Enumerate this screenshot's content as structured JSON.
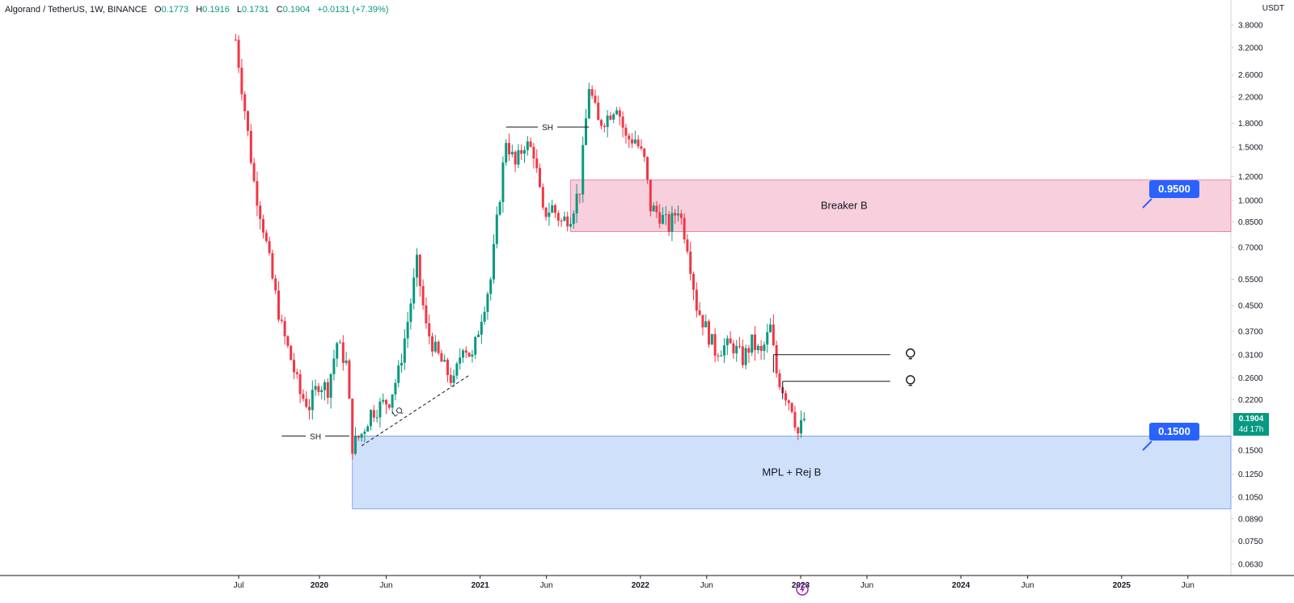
{
  "header": {
    "symbol": "Algorand / TetherUS, 1W, BINANCE",
    "o_label": "O",
    "o_value": "0.1773",
    "h_label": "H",
    "h_value": "0.1916",
    "l_label": "L",
    "l_value": "0.1731",
    "c_label": "C",
    "c_value": "0.1904",
    "change": "+0.0131 (+7.39%)"
  },
  "axis": {
    "currency": "USDT",
    "last_price": "0.1904",
    "countdown": "4d 17h"
  },
  "colors": {
    "up": "#089981",
    "down": "#f23645",
    "breaker_zone": "#f8cfdc",
    "demand_zone": "#cfe0fb",
    "callout": "#2962ff"
  },
  "icons": [
    "lightbulb-icon",
    "lightbulb-icon",
    "lightning-icon"
  ],
  "chart_data": {
    "type": "candlestick",
    "scale": "log",
    "y_ticks": [
      "3.8000",
      "3.2000",
      "2.6000",
      "2.2000",
      "1.8000",
      "1.5000",
      "1.2000",
      "1.0000",
      "0.8500",
      "0.7000",
      "0.5500",
      "0.4500",
      "0.3700",
      "0.3100",
      "0.2600",
      "0.2200",
      "0.1800",
      "0.1500",
      "0.1250",
      "0.1050",
      "0.0890",
      "0.0750",
      "0.0630"
    ],
    "x_ticks": [
      {
        "label": "Jul",
        "date": "2019-07-01",
        "bold": false
      },
      {
        "label": "2020",
        "date": "2020-01-01",
        "bold": true
      },
      {
        "label": "Jun",
        "date": "2020-06-01",
        "bold": false
      },
      {
        "label": "2021",
        "date": "2021-01-01",
        "bold": true
      },
      {
        "label": "Jun",
        "date": "2021-06-01",
        "bold": false
      },
      {
        "label": "2022",
        "date": "2022-01-01",
        "bold": true
      },
      {
        "label": "Jun",
        "date": "2022-06-01",
        "bold": false
      },
      {
        "label": "2023",
        "date": "2023-01-01",
        "bold": true
      },
      {
        "label": "Jun",
        "date": "2023-06-01",
        "bold": false
      },
      {
        "label": "2024",
        "date": "2024-01-01",
        "bold": true
      },
      {
        "label": "Jun",
        "date": "2024-06-01",
        "bold": false
      },
      {
        "label": "2025",
        "date": "2025-01-01",
        "bold": true
      },
      {
        "label": "Jun",
        "date": "2025-06-01",
        "bold": false
      }
    ],
    "price_path": [
      [
        "2019-06-24",
        3.4
      ],
      [
        "2019-07-15",
        2.0
      ],
      [
        "2019-08-05",
        1.15
      ],
      [
        "2019-08-26",
        0.82
      ],
      [
        "2019-09-16",
        0.55
      ],
      [
        "2019-10-07",
        0.38
      ],
      [
        "2019-10-28",
        0.3
      ],
      [
        "2019-11-18",
        0.23
      ],
      [
        "2019-12-09",
        0.21
      ],
      [
        "2019-12-30",
        0.25
      ],
      [
        "2020-01-20",
        0.24
      ],
      [
        "2020-02-10",
        0.34
      ],
      [
        "2020-03-02",
        0.29
      ],
      [
        "2020-03-16",
        0.155
      ],
      [
        "2020-04-06",
        0.17
      ],
      [
        "2020-04-27",
        0.2
      ],
      [
        "2020-05-18",
        0.21
      ],
      [
        "2020-06-08",
        0.22
      ],
      [
        "2020-06-29",
        0.27
      ],
      [
        "2020-07-20",
        0.4
      ],
      [
        "2020-08-10",
        0.62
      ],
      [
        "2020-08-31",
        0.38
      ],
      [
        "2020-09-21",
        0.32
      ],
      [
        "2020-10-12",
        0.28
      ],
      [
        "2020-11-02",
        0.25
      ],
      [
        "2020-11-23",
        0.34
      ],
      [
        "2020-12-14",
        0.3
      ],
      [
        "2021-01-04",
        0.42
      ],
      [
        "2021-01-25",
        0.55
      ],
      [
        "2021-02-15",
        1.05
      ],
      [
        "2021-03-01",
        1.6
      ],
      [
        "2021-03-22",
        1.3
      ],
      [
        "2021-04-12",
        1.55
      ],
      [
        "2021-05-03",
        1.45
      ],
      [
        "2021-05-24",
        0.9
      ],
      [
        "2021-06-14",
        0.95
      ],
      [
        "2021-07-05",
        0.85
      ],
      [
        "2021-07-26",
        0.9
      ],
      [
        "2021-08-16",
        1.1
      ],
      [
        "2021-09-06",
        2.4
      ],
      [
        "2021-09-27",
        1.8
      ],
      [
        "2021-10-18",
        1.9
      ],
      [
        "2021-11-08",
        2.1
      ],
      [
        "2021-11-29",
        1.6
      ],
      [
        "2021-12-20",
        1.6
      ],
      [
        "2022-01-10",
        1.35
      ],
      [
        "2022-01-24",
        0.95
      ],
      [
        "2022-02-14",
        0.9
      ],
      [
        "2022-03-07",
        0.82
      ],
      [
        "2022-03-28",
        0.95
      ],
      [
        "2022-04-18",
        0.72
      ],
      [
        "2022-05-09",
        0.45
      ],
      [
        "2022-05-30",
        0.38
      ],
      [
        "2022-06-20",
        0.32
      ],
      [
        "2022-07-11",
        0.33
      ],
      [
        "2022-08-01",
        0.33
      ],
      [
        "2022-08-22",
        0.3
      ],
      [
        "2022-09-12",
        0.34
      ],
      [
        "2022-10-03",
        0.31
      ],
      [
        "2022-10-24",
        0.38
      ],
      [
        "2022-11-07",
        0.27
      ],
      [
        "2022-11-21",
        0.24
      ],
      [
        "2022-12-12",
        0.21
      ],
      [
        "2022-12-26",
        0.17
      ],
      [
        "2023-01-09",
        0.1904
      ]
    ],
    "zones": [
      {
        "label": "Breaker B",
        "top": 1.17,
        "bottom": 0.79,
        "start": "2021-07-26",
        "end": "2025-09-01",
        "callout": "0.9500"
      },
      {
        "label": "MPL + Rej B",
        "top": 0.167,
        "bottom": 0.096,
        "start": "2020-03-16",
        "end": "2025-09-01",
        "callout": "0.1500"
      }
    ],
    "annotations": [
      {
        "text": "SH",
        "price": 0.167,
        "start": "2019-10-07",
        "end": "2020-03-09"
      },
      {
        "text": "SH",
        "price": 1.75,
        "start": "2021-03-01",
        "end": "2021-09-06"
      },
      {
        "text": "LQ",
        "type": "dashed-trendline",
        "start": "2020-04-06",
        "p1": 0.155,
        "end": "2020-12-07",
        "p2": 0.265
      },
      {
        "type": "level",
        "price": 0.31,
        "start": "2022-10-31",
        "end": "2023-07-24"
      },
      {
        "type": "level",
        "price": 0.253,
        "start": "2022-11-21",
        "end": "2023-07-24"
      }
    ]
  }
}
